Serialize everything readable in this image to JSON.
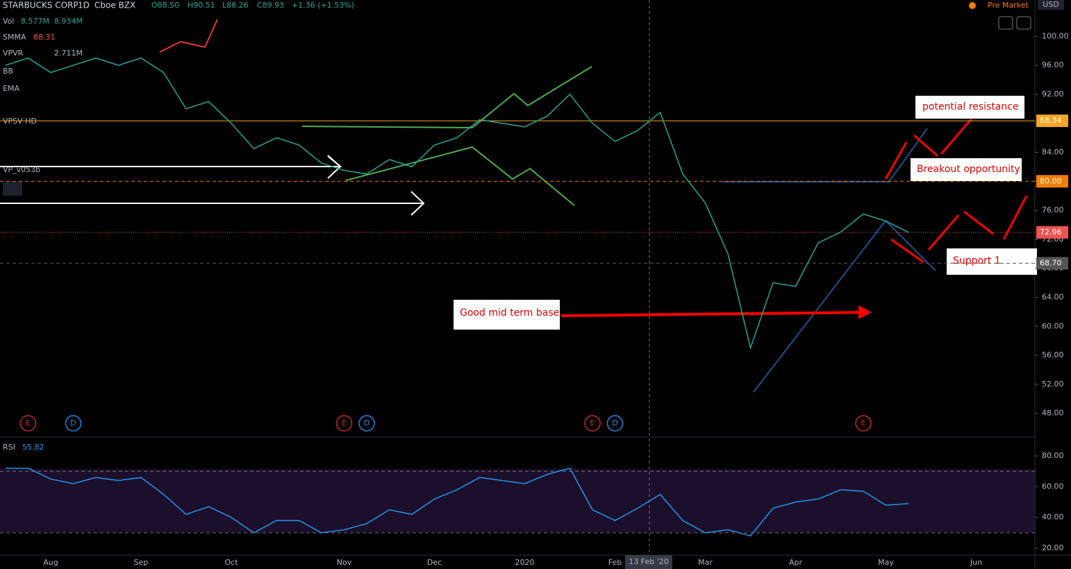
{
  "chart_data": {
    "type": "line",
    "title": "STARBUCKS CORP",
    "interval": "1D",
    "exchange": "Cboe BZX",
    "header_values": [
      "O88.50",
      "H90.51",
      "L88.26",
      "C89.93",
      "+1.36 (+1.53%)"
    ],
    "session": "Pre Market",
    "currency": "USD",
    "indicators": [
      {
        "name": "Vol",
        "values": [
          "8.577M",
          "8.934M"
        ]
      },
      {
        "name": "SMMA",
        "values": [
          "88.31"
        ]
      },
      {
        "name": "VPVR",
        "values": [
          "2.711M"
        ]
      },
      {
        "name": "BB"
      },
      {
        "name": "EMA"
      },
      {
        "name": "VPSV HD"
      },
      {
        "name": "VP_v053b"
      }
    ],
    "categories": [
      null,
      null,
      "Aug",
      null,
      null,
      null,
      "Sep",
      null,
      null,
      null,
      "Oct",
      null,
      null,
      null,
      null,
      "Nov",
      null,
      null,
      null,
      "Dec",
      null,
      null,
      null,
      "2020",
      null,
      null,
      null,
      "Feb",
      null,
      null,
      null,
      "Mar",
      null,
      null,
      null,
      "Apr",
      null,
      null,
      null,
      "May",
      null,
      null,
      null,
      "Jun"
    ],
    "events": [
      null,
      "E",
      null,
      "D",
      null,
      null,
      null,
      null,
      null,
      null,
      null,
      null,
      null,
      null,
      null,
      "E",
      "D",
      null,
      null,
      null,
      null,
      null,
      null,
      null,
      null,
      null,
      "E",
      "D",
      null,
      null,
      null,
      null,
      null,
      null,
      null,
      null,
      null,
      null,
      "E",
      null,
      null,
      null,
      null,
      null
    ],
    "series": [
      {
        "name": "SBUX",
        "color": "#26a69a",
        "values": [
          96,
          97,
          95,
          96,
          97,
          96,
          97,
          95,
          90,
          91,
          88,
          84.5,
          86,
          85,
          82.5,
          81.5,
          81,
          83,
          82,
          85,
          86,
          88.5,
          88,
          87.5,
          89,
          92,
          88,
          85.5,
          87,
          89.5,
          81,
          77,
          70,
          57,
          66,
          65.5,
          71.5,
          73,
          75.5,
          74.5,
          72.96,
          null,
          null,
          null
        ]
      }
    ],
    "ylim": [
      45,
      105
    ],
    "yticks": [
      {
        "value": 48,
        "label": "48.00"
      },
      {
        "value": 52,
        "label": "52.00"
      },
      {
        "value": 56,
        "label": "56.00"
      },
      {
        "value": 60,
        "label": "60.00"
      },
      {
        "value": 64,
        "label": "64.00"
      },
      {
        "value": 68,
        "label": "68.00"
      },
      {
        "value": 72,
        "label": "72.00"
      },
      {
        "value": 76,
        "label": "76.00"
      },
      {
        "value": 80,
        "label": "80.00"
      },
      {
        "value": 84,
        "label": "84.00"
      },
      {
        "value": 88,
        "label": "88.00"
      },
      {
        "value": 92,
        "label": "92.00"
      },
      {
        "value": 96,
        "label": "96.00"
      },
      {
        "value": 100,
        "label": "100.00"
      }
    ],
    "grid": false,
    "hlines": [
      {
        "value": 88.34,
        "label": "88.34",
        "color": "#f5a623",
        "style": "solid"
      },
      {
        "value": 80,
        "label": "80.00",
        "color": "#f57c00",
        "style": "dashed"
      },
      {
        "value": 72.96,
        "label": "72.96",
        "color": "#ef5350",
        "style": "dotted"
      },
      {
        "value": 68.7,
        "label": "68.70",
        "color": "#555555",
        "style": "dashed"
      }
    ],
    "annotations": [
      "potential resistance",
      "Breakout opportunity",
      "Support 1",
      "Good mid term base"
    ],
    "crosshair_label": "13 Feb '20",
    "rsi": {
      "name": "RSI",
      "last": "55.82",
      "color": "#2196f3",
      "values": [
        72,
        72,
        65,
        62,
        66,
        64,
        66,
        55,
        42,
        47,
        40,
        30,
        38,
        38,
        30,
        32,
        36,
        45,
        42,
        52,
        58,
        66,
        64,
        62,
        68,
        72,
        45,
        38,
        46,
        55,
        38,
        30,
        32,
        28,
        46,
        50,
        52,
        58,
        57,
        48,
        49,
        null,
        null,
        null
      ],
      "ylim": [
        15.5,
        89.5
      ],
      "yticks": [
        {
          "value": 20,
          "label": "20.00"
        },
        {
          "value": 40,
          "label": "40.00"
        },
        {
          "value": 60,
          "label": "60.00"
        },
        {
          "value": 80,
          "label": "80.00"
        }
      ],
      "bands": [
        30,
        70
      ]
    }
  }
}
